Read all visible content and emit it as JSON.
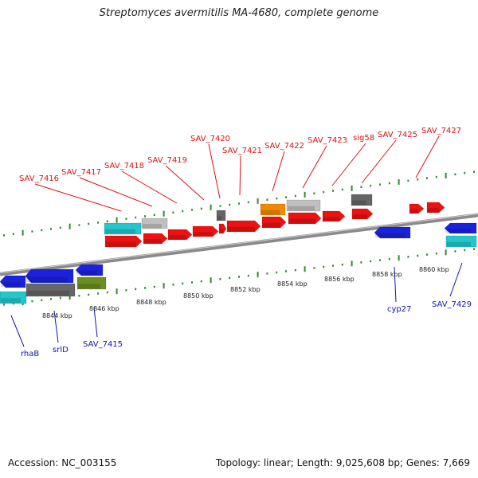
{
  "header": {
    "title": "Streptomyces avermitilis MA-4680, complete genome"
  },
  "footer": {
    "accession": "Accession: NC_003155",
    "summary": "Topology: linear; Length: 9,025,608 bp; Genes: 7,669"
  },
  "colors": {
    "backbone": "#8a8a8a",
    "tick": "#2e8b2e",
    "top_gene_label": "#dd1111",
    "bottom_gene_label": "#1111bb",
    "red": "#ee1111",
    "blue": "#1a22dd",
    "cyan": "#22c6cc",
    "gray": "#666666",
    "lightgray": "#c0c0c0",
    "orange": "#f08a00",
    "olive": "#6b8e23"
  },
  "scale_labels": [
    "8844 kbp",
    "8846 kbp",
    "8848 kbp",
    "8850 kbp",
    "8852 kbp",
    "8854 kbp",
    "8856 kbp",
    "8858 kbp",
    "8860 kbp"
  ],
  "top_labels": [
    "SAV_7416",
    "SAV_7417",
    "SAV_7418",
    "SAV_7419",
    "SAV_7420",
    "SAV_7421",
    "SAV_7422",
    "SAV_7423",
    "sig58",
    "SAV_7425",
    "SAV_7427"
  ],
  "bottom_labels": [
    "rhaB",
    "srlD",
    "SAV_7415",
    "cyp27",
    "SAV_7429"
  ]
}
